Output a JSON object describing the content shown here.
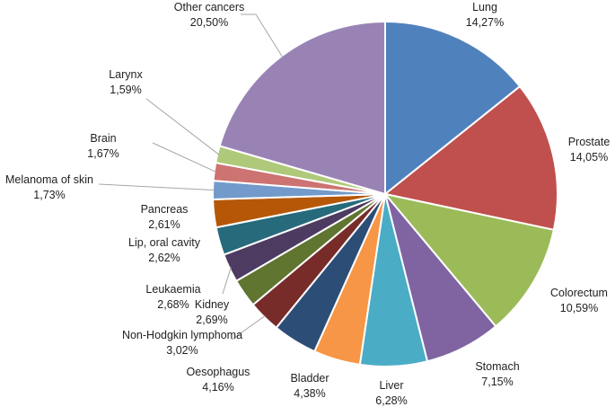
{
  "chart_data": {
    "type": "pie",
    "title": "",
    "slices": [
      {
        "name": "Lung",
        "value": 14.27,
        "label": "14,27%",
        "color": "#4F81BD"
      },
      {
        "name": "Prostate",
        "value": 14.05,
        "label": "14,05%",
        "color": "#C0504D"
      },
      {
        "name": "Colorectum",
        "value": 10.59,
        "label": "10,59%",
        "color": "#9BBB59"
      },
      {
        "name": "Stomach",
        "value": 7.15,
        "label": "7,15%",
        "color": "#8064A2"
      },
      {
        "name": "Liver",
        "value": 6.28,
        "label": "6,28%",
        "color": "#4BACC6"
      },
      {
        "name": "Bladder",
        "value": 4.38,
        "label": "4,38%",
        "color": "#F79646"
      },
      {
        "name": "Oesophagus",
        "value": 4.16,
        "label": "4,16%",
        "color": "#2C4D75"
      },
      {
        "name": "Non-Hodgkin lymphoma",
        "value": 3.02,
        "label": "3,02%",
        "color": "#772C2A"
      },
      {
        "name": "Kidney",
        "value": 2.69,
        "label": "2,69%",
        "color": "#5F7530"
      },
      {
        "name": "Leukaemia",
        "value": 2.68,
        "label": "2,68%",
        "color": "#4D3B62"
      },
      {
        "name": "Lip, oral cavity",
        "value": 2.62,
        "label": "2,62%",
        "color": "#276A7C"
      },
      {
        "name": "Pancreas",
        "value": 2.61,
        "label": "2,61%",
        "color": "#B65708"
      },
      {
        "name": "Melanoma of skin",
        "value": 1.73,
        "label": "1,73%",
        "color": "#729ACA"
      },
      {
        "name": "Brain",
        "value": 1.67,
        "label": "1,67%",
        "color": "#CD7371"
      },
      {
        "name": "Larynx",
        "value": 1.59,
        "label": "1,59%",
        "color": "#AFC97A"
      },
      {
        "name": "Other cancers",
        "value": 20.5,
        "label": "20,50%",
        "color": "#9983B5"
      }
    ]
  }
}
